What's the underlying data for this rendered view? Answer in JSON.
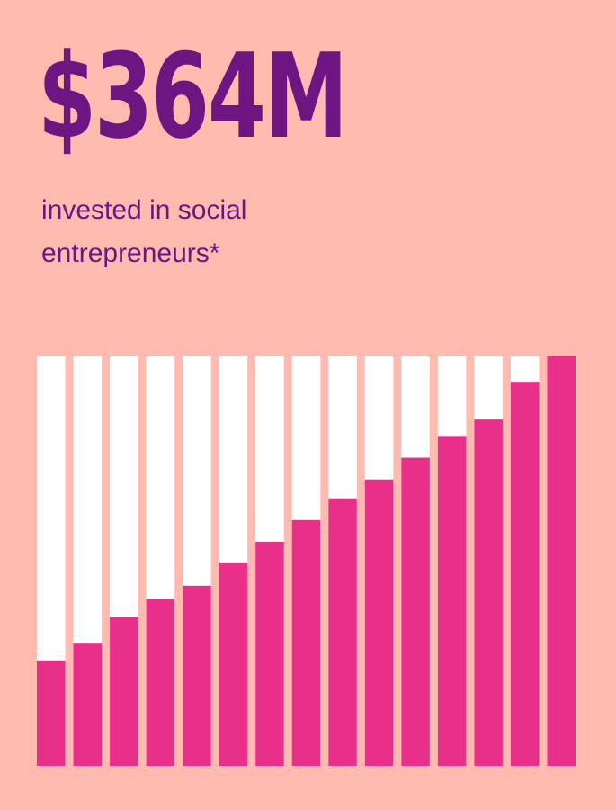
{
  "headline": "$364M",
  "subtitle": "invested in social entrepreneurs*",
  "colors": {
    "background": "#ffbbb0",
    "text": "#6e1582",
    "bar_fill": "#e8308a",
    "bar_track": "#ffffff"
  },
  "chart_data": {
    "type": "bar",
    "stacked": false,
    "categories": [
      "",
      "",
      "",
      "",
      "",
      "",
      "",
      "",
      "",
      "",
      "",
      "",
      "",
      "",
      ""
    ],
    "values": [
      0.257,
      0.3,
      0.364,
      0.408,
      0.439,
      0.496,
      0.546,
      0.599,
      0.652,
      0.698,
      0.751,
      0.804,
      0.844,
      0.936,
      1.0
    ],
    "ylim": [
      0,
      1
    ],
    "xlabel": "",
    "ylabel": "",
    "grid": false,
    "axes_visible": false
  }
}
